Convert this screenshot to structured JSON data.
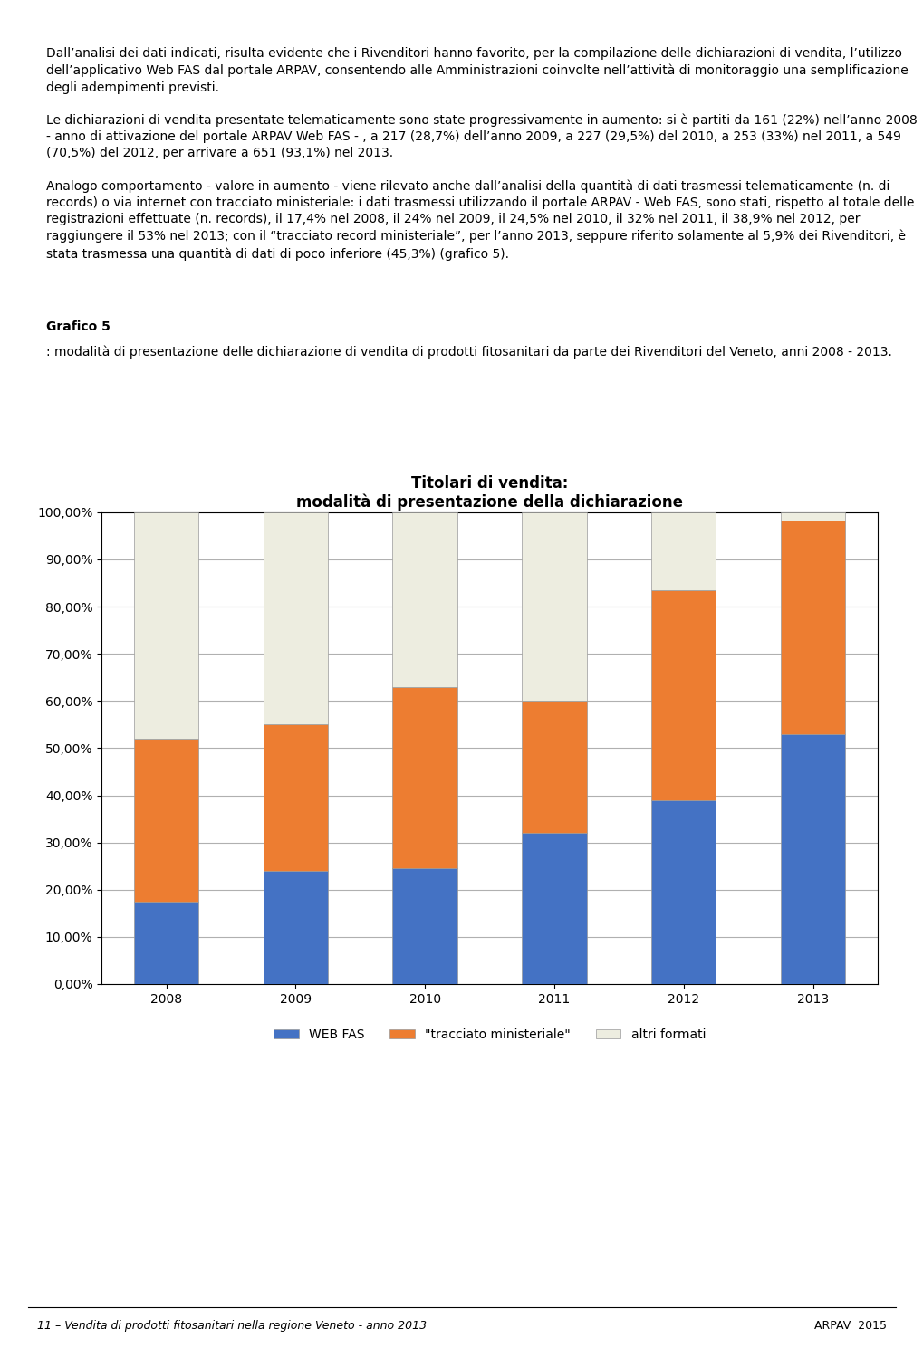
{
  "chart_data": {
    "type": "bar",
    "stacked": true,
    "title": "Titolari di vendita:\nmodalità di presentazione della dichiarazione",
    "categories": [
      "2008",
      "2009",
      "2010",
      "2011",
      "2012",
      "2013"
    ],
    "series": [
      {
        "name": "WEB FAS",
        "color": "#4472C4",
        "values": [
          17.4,
          24.0,
          24.5,
          32.0,
          38.9,
          53.0
        ]
      },
      {
        "name": "\"tracciato ministeriale\"",
        "color": "#ED7D31",
        "values": [
          34.6,
          31.0,
          38.5,
          28.0,
          44.6,
          45.3
        ]
      },
      {
        "name": "altri formati",
        "color": "#EDEDE0",
        "values": [
          48.0,
          45.0,
          37.0,
          40.0,
          16.5,
          1.7
        ]
      }
    ],
    "ylim": [
      0,
      100
    ],
    "yticks": [
      {
        "value": 0,
        "label": "0,00%"
      },
      {
        "value": 10,
        "label": "10,00%"
      },
      {
        "value": 20,
        "label": "20,00%"
      },
      {
        "value": 30,
        "label": "30,00%"
      },
      {
        "value": 40,
        "label": "40,00%"
      },
      {
        "value": 50,
        "label": "50,00%"
      },
      {
        "value": 60,
        "label": "60,00%"
      },
      {
        "value": 70,
        "label": "70,00%"
      },
      {
        "value": 80,
        "label": "80,00%"
      },
      {
        "value": 90,
        "label": "90,00%"
      },
      {
        "value": 100,
        "label": "100,00%"
      }
    ],
    "grid": true,
    "legend": "upper center",
    "annotations": [
      "Dall’analisi dei dati indicati, risulta evidente che i Rivenditori hanno favorito, per la compilazione delle dichiarazioni di vendita, l’utilizzo dell’applicativo Web FAS dal portale ARPAV, consentendo alle Amministrazioni coinvolte nell’attività di monitoraggio una semplificazione degli adempimenti previsti.",
      "Le dichiarazioni di vendita presentate telematicamente sono state progressivamente in aumento: si è partiti da 161 (22%) nell’anno 2008 - anno di attivazione del portale ARPAV Web FAS - , a 217 (28,7%) dell’anno 2009, a 227 (29,5%) del 2010, a 253 (33%) nel 2011, a 549 (70,5%) del 2012, per arrivare a 651 (93,1%) nel 2013.",
      "Analogo comportamento - valore in aumento - viene rilevato anche dall’analisi della quantità di dati trasmessi telematicamente (n. di records) o via internet con tracciato ministeriale: i dati trasmessi utilizzando il portale ARPAV - Web FAS, sono stati, rispetto al totale delle registrazioni effettuate (n. records), il 17,4% nel 2008, il 24% nel 2009, il 24,5% nel 2010, il 32% nel 2011, il 38,9% nel 2012, per raggiungere il 53% nel 2013; con il “tracciato record ministeriale”, per l’anno 2013, seppure riferito solamente al 5,9% dei Rivenditori, è stata trasmessa una quantità di dati di poco inferiore (45,3%) (grafico 5).",
      "Grafico 5",
      ": modalità di presentazione delle dichiarazione di vendita di prodotti fitosanitari da parte dei Rivenditori del Veneto, anni 2008 - 2013.",
      "11 – Vendita di prodotti fitosanitari nella regione Veneto - anno 2013",
      "ARPAV  2015"
    ]
  }
}
